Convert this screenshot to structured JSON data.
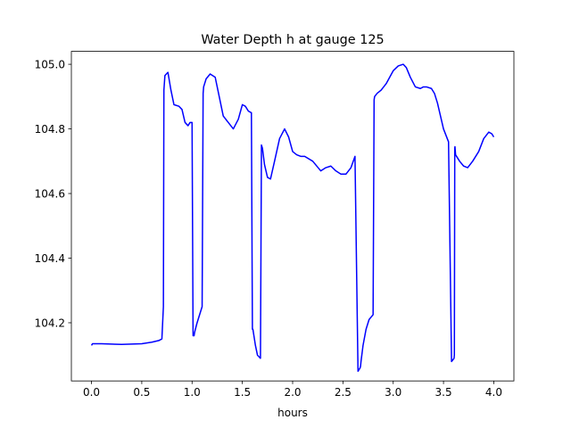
{
  "chart_data": {
    "type": "line",
    "title": "Water Depth h at gauge 125",
    "xlabel": "hours",
    "ylabel": "",
    "xlim": [
      -0.2,
      4.2
    ],
    "ylim": [
      104.02,
      105.04
    ],
    "xticks": [
      0.0,
      0.5,
      1.0,
      1.5,
      2.0,
      2.5,
      3.0,
      3.5,
      4.0
    ],
    "xtick_labels": [
      "0.0",
      "0.5",
      "1.0",
      "1.5",
      "2.0",
      "2.5",
      "3.0",
      "3.5",
      "4.0"
    ],
    "yticks": [
      104.2,
      104.4,
      104.6,
      104.8,
      105.0
    ],
    "ytick_labels": [
      "104.2",
      "104.4",
      "104.6",
      "104.8",
      "105.0"
    ],
    "grid": false,
    "legend": "none",
    "series": [
      {
        "color": "#0000ff",
        "x": [
          0.0,
          0.01,
          0.1,
          0.3,
          0.5,
          0.6,
          0.67,
          0.7,
          0.715,
          0.72,
          0.73,
          0.76,
          0.79,
          0.82,
          0.87,
          0.9,
          0.93,
          0.96,
          0.98,
          1.0,
          1.01,
          1.02,
          1.025,
          1.05,
          1.1,
          1.11,
          1.115,
          1.14,
          1.18,
          1.23,
          1.27,
          1.31,
          1.36,
          1.41,
          1.46,
          1.5,
          1.53,
          1.56,
          1.59,
          1.6,
          1.605,
          1.63,
          1.65,
          1.68,
          1.69,
          1.7,
          1.72,
          1.75,
          1.78,
          1.82,
          1.87,
          1.92,
          1.96,
          2.0,
          2.04,
          2.08,
          2.12,
          2.2,
          2.28,
          2.33,
          2.38,
          2.43,
          2.48,
          2.53,
          2.58,
          2.62,
          2.65,
          2.67,
          2.675,
          2.68,
          2.7,
          2.73,
          2.76,
          2.8,
          2.81,
          2.815,
          2.84,
          2.88,
          2.93,
          3.0,
          3.05,
          3.1,
          3.13,
          3.17,
          3.22,
          3.27,
          3.3,
          3.33,
          3.38,
          3.41,
          3.44,
          3.47,
          3.5,
          3.55,
          3.58,
          3.605,
          3.608,
          3.612,
          3.614,
          3.62,
          3.66,
          3.7,
          3.74,
          3.79,
          3.85,
          3.9,
          3.95,
          3.98,
          4.0
        ],
        "y": [
          104.13,
          104.135,
          104.135,
          104.133,
          104.135,
          104.14,
          104.145,
          104.15,
          104.25,
          104.92,
          104.965,
          104.975,
          104.92,
          104.875,
          104.87,
          104.86,
          104.82,
          104.81,
          104.82,
          104.82,
          104.16,
          104.16,
          104.17,
          104.2,
          104.25,
          104.91,
          104.93,
          104.955,
          104.97,
          104.96,
          104.9,
          104.84,
          104.82,
          104.8,
          104.83,
          104.875,
          104.87,
          104.855,
          104.85,
          104.18,
          104.18,
          104.13,
          104.1,
          104.09,
          104.75,
          104.74,
          104.69,
          104.65,
          104.645,
          104.7,
          104.77,
          104.8,
          104.775,
          104.73,
          104.72,
          104.715,
          104.715,
          104.7,
          104.67,
          104.68,
          104.685,
          104.67,
          104.66,
          104.66,
          104.68,
          104.715,
          104.05,
          104.06,
          104.065,
          104.08,
          104.13,
          104.18,
          104.21,
          104.225,
          104.89,
          104.9,
          104.91,
          104.92,
          104.94,
          104.98,
          104.995,
          105.0,
          104.99,
          104.96,
          104.93,
          104.925,
          104.93,
          104.93,
          104.925,
          104.91,
          104.88,
          104.84,
          104.8,
          104.76,
          104.08,
          104.09,
          104.1,
          104.74,
          104.745,
          104.72,
          104.7,
          104.685,
          104.68,
          104.7,
          104.73,
          104.77,
          104.79,
          104.785,
          104.775
        ]
      }
    ]
  }
}
